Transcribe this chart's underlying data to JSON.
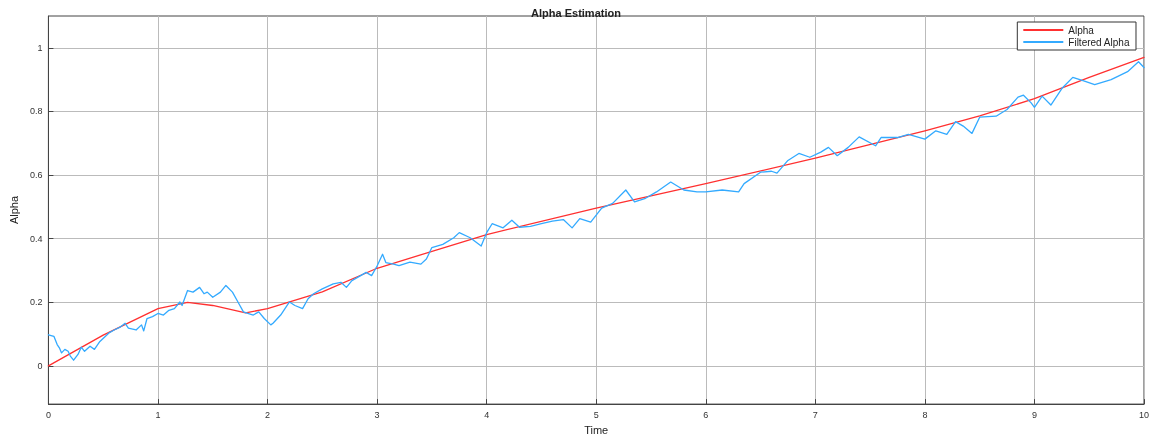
{
  "chart_data": {
    "type": "line",
    "title": "Alpha Estimation",
    "xlabel": "Time",
    "ylabel": "Alpha",
    "xlim": [
      0,
      10
    ],
    "xticks": [
      0,
      1,
      2,
      3,
      4,
      5,
      6,
      7,
      8,
      9,
      10
    ],
    "ylim": [
      -0.12,
      1.1
    ],
    "yticks": [
      0,
      0.2,
      0.4,
      0.6,
      0.8,
      1
    ],
    "grid": true,
    "legend": "top right",
    "marker": "none",
    "line_style": "solid",
    "series": [
      {
        "name": "Alpha",
        "color": "#ff3030",
        "x": [
          0,
          0.5,
          1,
          1.27,
          1.5,
          1.8,
          2,
          2.5,
          3,
          4,
          5,
          6,
          7,
          8,
          8.5,
          9,
          9.5,
          10
        ],
        "values": [
          0,
          0.097,
          0.18,
          0.2,
          0.19,
          0.167,
          0.18,
          0.233,
          0.307,
          0.413,
          0.496,
          0.573,
          0.653,
          0.739,
          0.786,
          0.84,
          0.907,
          0.97
        ]
      },
      {
        "name": "Filtered Alpha",
        "color": "#33aaff",
        "x": [
          0,
          0.05,
          0.08,
          0.1,
          0.12,
          0.15,
          0.18,
          0.2,
          0.23,
          0.27,
          0.3,
          0.33,
          0.38,
          0.42,
          0.47,
          0.55,
          0.6,
          0.65,
          0.7,
          0.73,
          0.8,
          0.85,
          0.87,
          0.9,
          0.95,
          1,
          1.05,
          1.1,
          1.15,
          1.2,
          1.22,
          1.27,
          1.32,
          1.38,
          1.42,
          1.45,
          1.5,
          1.57,
          1.62,
          1.68,
          1.73,
          1.78,
          1.82,
          1.87,
          1.92,
          1.97,
          2.03,
          2.05,
          2.12,
          2.2,
          2.25,
          2.32,
          2.37,
          2.42,
          2.5,
          2.6,
          2.67,
          2.72,
          2.77,
          2.85,
          2.9,
          2.95,
          3,
          3.05,
          3.08,
          3.15,
          3.2,
          3.3,
          3.4,
          3.45,
          3.5,
          3.6,
          3.7,
          3.75,
          3.85,
          3.95,
          4,
          4.05,
          4.15,
          4.23,
          4.3,
          4.4,
          4.5,
          4.6,
          4.7,
          4.78,
          4.85,
          4.95,
          5.05,
          5.15,
          5.27,
          5.35,
          5.45,
          5.55,
          5.68,
          5.8,
          5.92,
          6,
          6.15,
          6.3,
          6.35,
          6.5,
          6.6,
          6.65,
          6.75,
          6.85,
          6.95,
          7.05,
          7.12,
          7.2,
          7.3,
          7.4,
          7.55,
          7.6,
          7.75,
          7.85,
          8,
          8.1,
          8.2,
          8.28,
          8.35,
          8.43,
          8.5,
          8.65,
          8.75,
          8.85,
          8.9,
          8.97,
          9,
          9.07,
          9.15,
          9.25,
          9.35,
          9.45,
          9.55,
          9.7,
          9.85,
          9.95,
          10
        ],
        "values": [
          0.098,
          0.093,
          0.067,
          0.057,
          0.041,
          0.052,
          0.046,
          0.031,
          0.018,
          0.036,
          0.059,
          0.046,
          0.062,
          0.052,
          0.077,
          0.103,
          0.113,
          0.121,
          0.134,
          0.119,
          0.113,
          0.129,
          0.11,
          0.149,
          0.155,
          0.165,
          0.16,
          0.175,
          0.18,
          0.201,
          0.19,
          0.237,
          0.232,
          0.247,
          0.227,
          0.232,
          0.216,
          0.232,
          0.253,
          0.232,
          0.201,
          0.17,
          0.165,
          0.16,
          0.17,
          0.149,
          0.129,
          0.134,
          0.16,
          0.201,
          0.19,
          0.18,
          0.211,
          0.227,
          0.242,
          0.258,
          0.263,
          0.247,
          0.268,
          0.284,
          0.294,
          0.284,
          0.314,
          0.351,
          0.325,
          0.32,
          0.315,
          0.326,
          0.32,
          0.336,
          0.372,
          0.382,
          0.403,
          0.419,
          0.403,
          0.377,
          0.419,
          0.447,
          0.434,
          0.458,
          0.436,
          0.439,
          0.447,
          0.455,
          0.46,
          0.434,
          0.463,
          0.452,
          0.496,
          0.511,
          0.553,
          0.516,
          0.527,
          0.547,
          0.578,
          0.553,
          0.547,
          0.547,
          0.553,
          0.547,
          0.573,
          0.609,
          0.612,
          0.606,
          0.646,
          0.668,
          0.656,
          0.672,
          0.687,
          0.661,
          0.687,
          0.72,
          0.692,
          0.718,
          0.718,
          0.728,
          0.713,
          0.739,
          0.728,
          0.768,
          0.754,
          0.731,
          0.782,
          0.785,
          0.806,
          0.845,
          0.851,
          0.827,
          0.813,
          0.848,
          0.82,
          0.872,
          0.907,
          0.896,
          0.884,
          0.9,
          0.925,
          0.956,
          0.938
        ]
      }
    ]
  }
}
